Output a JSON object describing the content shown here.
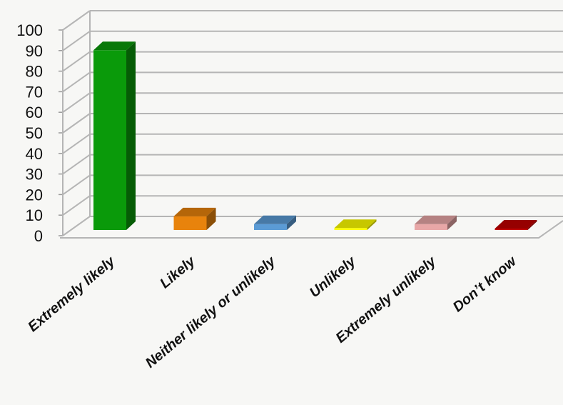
{
  "chart_data": {
    "type": "bar",
    "style": "3d-column",
    "categories": [
      "Extremely likely",
      "Likely",
      "Neither likely or unlikely",
      "Unlikely",
      "Extremely unlikely",
      "Don’t know"
    ],
    "values": [
      92,
      7,
      3,
      1,
      3,
      0
    ],
    "colors": [
      "#0a9a0a",
      "#e8830c",
      "#5b9bd5",
      "#ffff00",
      "#e8a7a7",
      "#c00000"
    ],
    "ylim": [
      0,
      100
    ],
    "yticks": [
      0,
      10,
      20,
      30,
      40,
      50,
      60,
      70,
      80,
      90,
      100
    ],
    "title": "",
    "xlabel": "",
    "ylabel": "",
    "grid": true,
    "legend": "none"
  }
}
